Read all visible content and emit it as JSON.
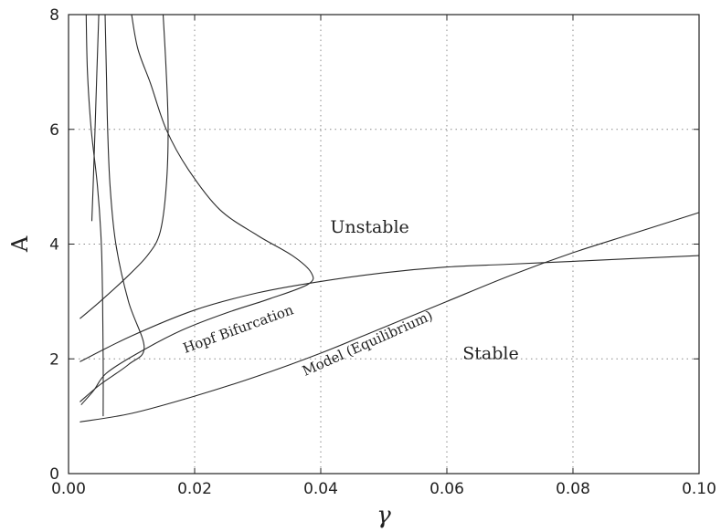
{
  "chart_data": {
    "type": "line",
    "title": "",
    "xlabel": "γ",
    "ylabel": "A",
    "xlim": [
      0.0,
      0.1
    ],
    "ylim": [
      0,
      8
    ],
    "grid": true,
    "x_ticks": [
      "0.00",
      "0.02",
      "0.04",
      "0.06",
      "0.08",
      "0.10"
    ],
    "y_ticks": [
      "0",
      "2",
      "4",
      "6",
      "8"
    ],
    "annotations": [
      {
        "text": "Unstable",
        "x": 0.0415,
        "y": 4.2,
        "rotation_deg": 0
      },
      {
        "text": "Stable",
        "x": 0.0625,
        "y": 2.0,
        "rotation_deg": 0
      },
      {
        "text": "Hopf Bifurcation",
        "x": 0.0185,
        "y": 2.1,
        "rotation_deg": -20
      },
      {
        "text": "Model (Equilibrium)",
        "x": 0.0375,
        "y": 1.7,
        "rotation_deg": -24
      }
    ],
    "series": [
      {
        "points": [
          [
            0.0048,
            8.0
          ],
          [
            0.0045,
            7.0
          ],
          [
            0.0042,
            6.0
          ],
          [
            0.0039,
            5.0
          ],
          [
            0.0037,
            4.4
          ]
        ]
      },
      {
        "points": [
          [
            0.0028,
            8.0
          ],
          [
            0.003,
            7.0
          ],
          [
            0.0036,
            6.0
          ],
          [
            0.0046,
            5.0
          ],
          [
            0.0052,
            4.0
          ],
          [
            0.0054,
            3.0
          ],
          [
            0.0055,
            2.0
          ],
          [
            0.0055,
            1.0
          ]
        ]
      },
      {
        "points": [
          [
            0.0058,
            8.0
          ],
          [
            0.006,
            7.0
          ],
          [
            0.0062,
            6.0
          ],
          [
            0.0066,
            5.0
          ],
          [
            0.0075,
            4.0
          ],
          [
            0.0095,
            3.0
          ],
          [
            0.012,
            2.2
          ],
          [
            0.0095,
            1.9
          ],
          [
            0.005,
            1.55
          ],
          [
            0.0018,
            1.25
          ]
        ]
      },
      {
        "points": [
          [
            0.0018,
            2.7
          ],
          [
            0.005,
            3.0
          ],
          [
            0.009,
            3.4
          ],
          [
            0.0125,
            3.8
          ],
          [
            0.0145,
            4.2
          ],
          [
            0.0155,
            5.0
          ],
          [
            0.0158,
            6.0
          ],
          [
            0.0155,
            7.0
          ],
          [
            0.015,
            8.0
          ]
        ]
      },
      {
        "points": [
          [
            0.01,
            8.0
          ],
          [
            0.011,
            7.4
          ],
          [
            0.013,
            6.8
          ],
          [
            0.0155,
            6.0
          ],
          [
            0.019,
            5.3
          ],
          [
            0.024,
            4.6
          ],
          [
            0.03,
            4.15
          ],
          [
            0.0355,
            3.8
          ],
          [
            0.0385,
            3.5
          ],
          [
            0.038,
            3.3
          ],
          [
            0.032,
            3.05
          ],
          [
            0.025,
            2.8
          ],
          [
            0.018,
            2.5
          ],
          [
            0.011,
            2.1
          ],
          [
            0.006,
            1.75
          ],
          [
            0.004,
            1.45
          ],
          [
            0.002,
            1.2
          ]
        ]
      },
      {
        "points": [
          [
            0.0018,
            1.95
          ],
          [
            0.01,
            2.4
          ],
          [
            0.02,
            2.85
          ],
          [
            0.03,
            3.15
          ],
          [
            0.04,
            3.35
          ],
          [
            0.05,
            3.5
          ],
          [
            0.06,
            3.6
          ],
          [
            0.07,
            3.65
          ],
          [
            0.08,
            3.7
          ],
          [
            0.09,
            3.75
          ],
          [
            0.1,
            3.8
          ]
        ]
      },
      {
        "points": [
          [
            0.0018,
            0.9
          ],
          [
            0.01,
            1.05
          ],
          [
            0.02,
            1.35
          ],
          [
            0.03,
            1.7
          ],
          [
            0.04,
            2.1
          ],
          [
            0.05,
            2.55
          ],
          [
            0.06,
            3.0
          ],
          [
            0.07,
            3.45
          ],
          [
            0.08,
            3.85
          ],
          [
            0.09,
            4.2
          ],
          [
            0.1,
            4.55
          ]
        ]
      }
    ]
  }
}
